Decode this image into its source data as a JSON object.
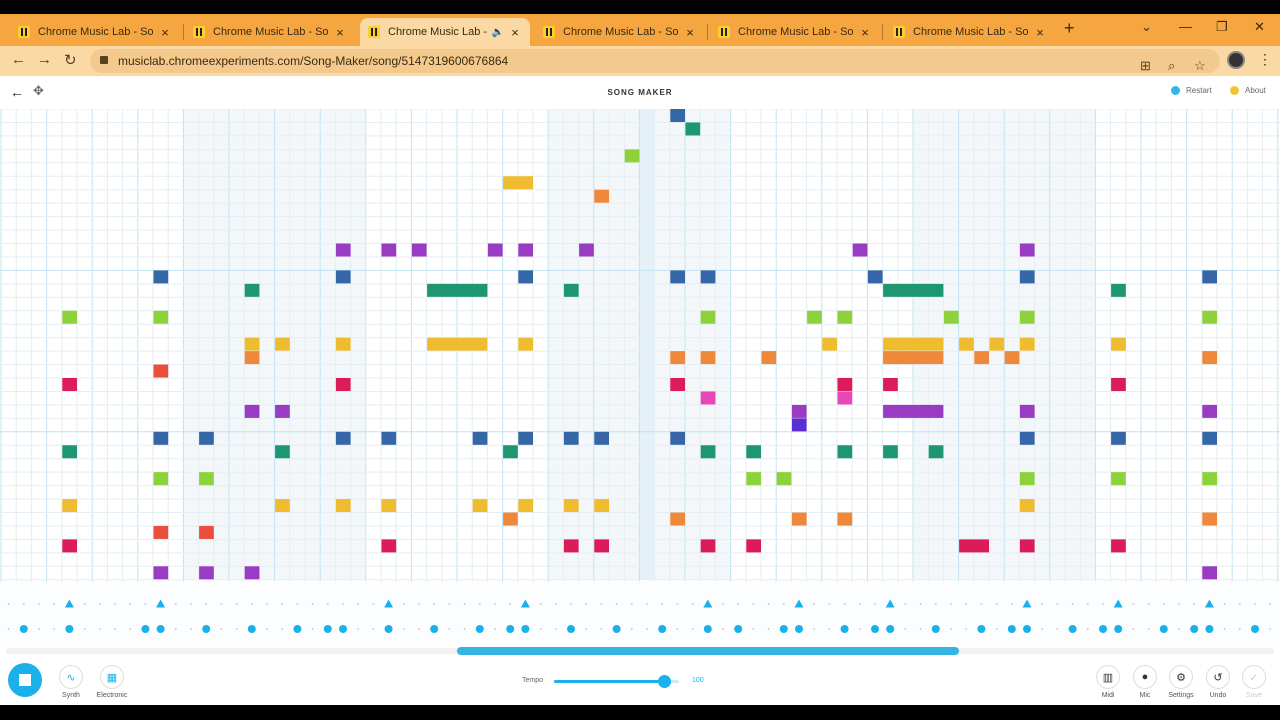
{
  "browser": {
    "tabs": [
      {
        "title": "Chrome Music Lab - Song",
        "active": false,
        "audio": false
      },
      {
        "title": "Chrome Music Lab - Song",
        "active": false,
        "audio": false
      },
      {
        "title": "Chrome Music Lab - S",
        "active": true,
        "audio": true
      },
      {
        "title": "Chrome Music Lab - Song",
        "active": false,
        "audio": false
      },
      {
        "title": "Chrome Music Lab - Song",
        "active": false,
        "audio": false
      },
      {
        "title": "Chrome Music Lab - Song",
        "active": false,
        "audio": false
      }
    ],
    "close_glyph": "×",
    "new_tab_glyph": "+",
    "url": "musiclab.chromeexperiments.com/Song-Maker/song/5147319600676864"
  },
  "app": {
    "title": "SONG MAKER",
    "restart_label": "Restart",
    "about_label": "About"
  },
  "colors": {
    "blue": "#3566a7",
    "teal": "#1e9671",
    "lime": "#8ed23b",
    "yellow": "#f0bc2f",
    "orange": "#f0883b",
    "red": "#eb4e3b",
    "crimson": "#db1b5a",
    "pink": "#e848b7",
    "purple": "#9a3bc4",
    "indigo": "#5b2ed1",
    "gridline": "#e4eef3",
    "beatline": "#bfe4f1",
    "accent": "#1ab0ea"
  },
  "grid": {
    "columns": 84,
    "rows": 35,
    "highlight_column": 42,
    "notes": [
      {
        "col": 44,
        "row": 0,
        "len": 1,
        "color": "blue"
      },
      {
        "col": 45,
        "row": 1,
        "len": 1,
        "color": "teal"
      },
      {
        "col": 41,
        "row": 3,
        "len": 1,
        "color": "lime"
      },
      {
        "col": 33,
        "row": 5,
        "len": 2,
        "color": "yellow"
      },
      {
        "col": 39,
        "row": 6,
        "len": 1,
        "color": "orange"
      },
      {
        "col": 22,
        "row": 10,
        "len": 1,
        "color": "purple"
      },
      {
        "col": 25,
        "row": 10,
        "len": 1,
        "color": "purple"
      },
      {
        "col": 27,
        "row": 10,
        "len": 1,
        "color": "purple"
      },
      {
        "col": 32,
        "row": 10,
        "len": 1,
        "color": "purple"
      },
      {
        "col": 34,
        "row": 10,
        "len": 1,
        "color": "purple"
      },
      {
        "col": 38,
        "row": 10,
        "len": 1,
        "color": "purple"
      },
      {
        "col": 56,
        "row": 10,
        "len": 1,
        "color": "purple"
      },
      {
        "col": 67,
        "row": 10,
        "len": 1,
        "color": "purple"
      },
      {
        "col": 10,
        "row": 12,
        "len": 1,
        "color": "blue"
      },
      {
        "col": 22,
        "row": 12,
        "len": 1,
        "color": "blue"
      },
      {
        "col": 34,
        "row": 12,
        "len": 1,
        "color": "blue"
      },
      {
        "col": 44,
        "row": 12,
        "len": 1,
        "color": "blue"
      },
      {
        "col": 46,
        "row": 12,
        "len": 1,
        "color": "blue"
      },
      {
        "col": 57,
        "row": 12,
        "len": 1,
        "color": "blue"
      },
      {
        "col": 67,
        "row": 12,
        "len": 1,
        "color": "blue"
      },
      {
        "col": 79,
        "row": 12,
        "len": 1,
        "color": "blue"
      },
      {
        "col": 16,
        "row": 13,
        "len": 1,
        "color": "teal"
      },
      {
        "col": 28,
        "row": 13,
        "len": 4,
        "color": "teal"
      },
      {
        "col": 37,
        "row": 13,
        "len": 1,
        "color": "teal"
      },
      {
        "col": 58,
        "row": 13,
        "len": 4,
        "color": "teal"
      },
      {
        "col": 73,
        "row": 13,
        "len": 1,
        "color": "teal"
      },
      {
        "col": 4,
        "row": 15,
        "len": 1,
        "color": "lime"
      },
      {
        "col": 10,
        "row": 15,
        "len": 1,
        "color": "lime"
      },
      {
        "col": 46,
        "row": 15,
        "len": 1,
        "color": "lime"
      },
      {
        "col": 53,
        "row": 15,
        "len": 1,
        "color": "lime"
      },
      {
        "col": 55,
        "row": 15,
        "len": 1,
        "color": "lime"
      },
      {
        "col": 62,
        "row": 15,
        "len": 1,
        "color": "lime"
      },
      {
        "col": 67,
        "row": 15,
        "len": 1,
        "color": "lime"
      },
      {
        "col": 79,
        "row": 15,
        "len": 1,
        "color": "lime"
      },
      {
        "col": 16,
        "row": 17,
        "len": 1,
        "color": "yellow"
      },
      {
        "col": 18,
        "row": 17,
        "len": 1,
        "color": "yellow"
      },
      {
        "col": 22,
        "row": 17,
        "len": 1,
        "color": "yellow"
      },
      {
        "col": 28,
        "row": 17,
        "len": 4,
        "color": "yellow"
      },
      {
        "col": 34,
        "row": 17,
        "len": 1,
        "color": "yellow"
      },
      {
        "col": 54,
        "row": 17,
        "len": 1,
        "color": "yellow"
      },
      {
        "col": 58,
        "row": 17,
        "len": 4,
        "color": "yellow"
      },
      {
        "col": 63,
        "row": 17,
        "len": 1,
        "color": "yellow"
      },
      {
        "col": 65,
        "row": 17,
        "len": 1,
        "color": "yellow"
      },
      {
        "col": 67,
        "row": 17,
        "len": 1,
        "color": "yellow"
      },
      {
        "col": 73,
        "row": 17,
        "len": 1,
        "color": "yellow"
      },
      {
        "col": 16,
        "row": 18,
        "len": 1,
        "color": "orange"
      },
      {
        "col": 44,
        "row": 18,
        "len": 1,
        "color": "orange"
      },
      {
        "col": 46,
        "row": 18,
        "len": 1,
        "color": "orange"
      },
      {
        "col": 50,
        "row": 18,
        "len": 1,
        "color": "orange"
      },
      {
        "col": 58,
        "row": 18,
        "len": 4,
        "color": "orange"
      },
      {
        "col": 64,
        "row": 18,
        "len": 1,
        "color": "orange"
      },
      {
        "col": 66,
        "row": 18,
        "len": 1,
        "color": "orange"
      },
      {
        "col": 79,
        "row": 18,
        "len": 1,
        "color": "orange"
      },
      {
        "col": 10,
        "row": 19,
        "len": 1,
        "color": "red"
      },
      {
        "col": 4,
        "row": 20,
        "len": 1,
        "color": "crimson"
      },
      {
        "col": 22,
        "row": 20,
        "len": 1,
        "color": "crimson"
      },
      {
        "col": 44,
        "row": 20,
        "len": 1,
        "color": "crimson"
      },
      {
        "col": 55,
        "row": 20,
        "len": 1,
        "color": "crimson"
      },
      {
        "col": 58,
        "row": 20,
        "len": 1,
        "color": "crimson"
      },
      {
        "col": 73,
        "row": 20,
        "len": 1,
        "color": "crimson"
      },
      {
        "col": 46,
        "row": 21,
        "len": 1,
        "color": "pink"
      },
      {
        "col": 55,
        "row": 21,
        "len": 1,
        "color": "pink"
      },
      {
        "col": 16,
        "row": 22,
        "len": 1,
        "color": "purple"
      },
      {
        "col": 18,
        "row": 22,
        "len": 1,
        "color": "purple"
      },
      {
        "col": 52,
        "row": 22,
        "len": 1,
        "color": "purple"
      },
      {
        "col": 58,
        "row": 22,
        "len": 4,
        "color": "purple"
      },
      {
        "col": 67,
        "row": 22,
        "len": 1,
        "color": "purple"
      },
      {
        "col": 79,
        "row": 22,
        "len": 1,
        "color": "purple"
      },
      {
        "col": 52,
        "row": 23,
        "len": 1,
        "color": "indigo"
      },
      {
        "col": 10,
        "row": 24,
        "len": 1,
        "color": "blue"
      },
      {
        "col": 13,
        "row": 24,
        "len": 1,
        "color": "blue"
      },
      {
        "col": 22,
        "row": 24,
        "len": 1,
        "color": "blue"
      },
      {
        "col": 25,
        "row": 24,
        "len": 1,
        "color": "blue"
      },
      {
        "col": 31,
        "row": 24,
        "len": 1,
        "color": "blue"
      },
      {
        "col": 34,
        "row": 24,
        "len": 1,
        "color": "blue"
      },
      {
        "col": 37,
        "row": 24,
        "len": 1,
        "color": "blue"
      },
      {
        "col": 39,
        "row": 24,
        "len": 1,
        "color": "blue"
      },
      {
        "col": 44,
        "row": 24,
        "len": 1,
        "color": "blue"
      },
      {
        "col": 67,
        "row": 24,
        "len": 1,
        "color": "blue"
      },
      {
        "col": 73,
        "row": 24,
        "len": 1,
        "color": "blue"
      },
      {
        "col": 79,
        "row": 24,
        "len": 1,
        "color": "blue"
      },
      {
        "col": 4,
        "row": 25,
        "len": 1,
        "color": "teal"
      },
      {
        "col": 18,
        "row": 25,
        "len": 1,
        "color": "teal"
      },
      {
        "col": 33,
        "row": 25,
        "len": 1,
        "color": "teal"
      },
      {
        "col": 46,
        "row": 25,
        "len": 1,
        "color": "teal"
      },
      {
        "col": 49,
        "row": 25,
        "len": 1,
        "color": "teal"
      },
      {
        "col": 55,
        "row": 25,
        "len": 1,
        "color": "teal"
      },
      {
        "col": 58,
        "row": 25,
        "len": 1,
        "color": "teal"
      },
      {
        "col": 61,
        "row": 25,
        "len": 1,
        "color": "teal"
      },
      {
        "col": 10,
        "row": 27,
        "len": 1,
        "color": "lime"
      },
      {
        "col": 13,
        "row": 27,
        "len": 1,
        "color": "lime"
      },
      {
        "col": 49,
        "row": 27,
        "len": 1,
        "color": "lime"
      },
      {
        "col": 51,
        "row": 27,
        "len": 1,
        "color": "lime"
      },
      {
        "col": 67,
        "row": 27,
        "len": 1,
        "color": "lime"
      },
      {
        "col": 73,
        "row": 27,
        "len": 1,
        "color": "lime"
      },
      {
        "col": 79,
        "row": 27,
        "len": 1,
        "color": "lime"
      },
      {
        "col": 4,
        "row": 29,
        "len": 1,
        "color": "yellow"
      },
      {
        "col": 18,
        "row": 29,
        "len": 1,
        "color": "yellow"
      },
      {
        "col": 22,
        "row": 29,
        "len": 1,
        "color": "yellow"
      },
      {
        "col": 25,
        "row": 29,
        "len": 1,
        "color": "yellow"
      },
      {
        "col": 31,
        "row": 29,
        "len": 1,
        "color": "yellow"
      },
      {
        "col": 34,
        "row": 29,
        "len": 1,
        "color": "yellow"
      },
      {
        "col": 37,
        "row": 29,
        "len": 1,
        "color": "yellow"
      },
      {
        "col": 39,
        "row": 29,
        "len": 1,
        "color": "yellow"
      },
      {
        "col": 67,
        "row": 29,
        "len": 1,
        "color": "yellow"
      },
      {
        "col": 33,
        "row": 30,
        "len": 1,
        "color": "orange"
      },
      {
        "col": 44,
        "row": 30,
        "len": 1,
        "color": "orange"
      },
      {
        "col": 52,
        "row": 30,
        "len": 1,
        "color": "orange"
      },
      {
        "col": 55,
        "row": 30,
        "len": 1,
        "color": "orange"
      },
      {
        "col": 79,
        "row": 30,
        "len": 1,
        "color": "orange"
      },
      {
        "col": 10,
        "row": 31,
        "len": 1,
        "color": "red"
      },
      {
        "col": 13,
        "row": 31,
        "len": 1,
        "color": "red"
      },
      {
        "col": 4,
        "row": 32,
        "len": 1,
        "color": "crimson"
      },
      {
        "col": 25,
        "row": 32,
        "len": 1,
        "color": "crimson"
      },
      {
        "col": 37,
        "row": 32,
        "len": 1,
        "color": "crimson"
      },
      {
        "col": 39,
        "row": 32,
        "len": 1,
        "color": "crimson"
      },
      {
        "col": 46,
        "row": 32,
        "len": 1,
        "color": "crimson"
      },
      {
        "col": 49,
        "row": 32,
        "len": 1,
        "color": "crimson"
      },
      {
        "col": 63,
        "row": 32,
        "len": 2,
        "color": "crimson"
      },
      {
        "col": 67,
        "row": 32,
        "len": 1,
        "color": "crimson"
      },
      {
        "col": 73,
        "row": 32,
        "len": 1,
        "color": "crimson"
      },
      {
        "col": 10,
        "row": 34,
        "len": 1,
        "color": "purple"
      },
      {
        "col": 13,
        "row": 34,
        "len": 1,
        "color": "purple"
      },
      {
        "col": 16,
        "row": 34,
        "len": 1,
        "color": "purple"
      },
      {
        "col": 79,
        "row": 34,
        "len": 1,
        "color": "purple"
      }
    ]
  },
  "percussion": {
    "triangles": [
      4,
      10,
      25,
      34,
      46,
      52,
      58,
      67,
      73,
      79
    ],
    "circles": [
      1,
      4,
      9,
      10,
      13,
      16,
      19,
      21,
      22,
      25,
      28,
      31,
      33,
      34,
      37,
      40,
      43,
      46,
      48,
      51,
      52,
      55,
      57,
      58,
      61,
      64,
      66,
      67,
      70,
      72,
      73,
      76,
      78,
      79,
      82
    ]
  },
  "controls": {
    "instrument_label": "Synth",
    "percussion_label": "Electronic",
    "tempo_label": "Tempo",
    "tempo_value": "100",
    "tempo_fraction": 0.88,
    "midi_label": "Midi",
    "mic_label": "Mic",
    "settings_label": "Settings",
    "undo_label": "Undo",
    "save_label": "Save"
  }
}
